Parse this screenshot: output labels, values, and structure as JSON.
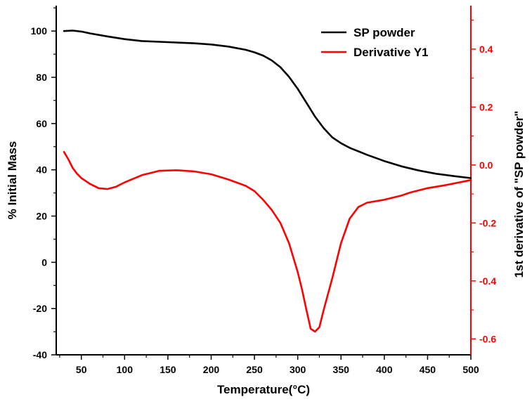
{
  "chart_data": {
    "type": "line",
    "xlabel": "Temperature(°C)",
    "ylabel_left": "% Initial Mass",
    "ylabel_right": "1st derivative of \"SP powder\"",
    "xlim": [
      21,
      500
    ],
    "ylim_left": [
      -40,
      111
    ],
    "ylim_right": [
      -0.655,
      0.55
    ],
    "x_ticks": [
      50,
      100,
      150,
      200,
      250,
      300,
      350,
      400,
      450,
      500
    ],
    "y_ticks_left": [
      -40,
      -20,
      0,
      20,
      40,
      60,
      80,
      100
    ],
    "y_ticks_right": [
      -0.6,
      -0.4,
      -0.2,
      0.0,
      0.2,
      0.4
    ],
    "grid": false,
    "legend_position": "top-right",
    "colors": {
      "left_axis": "#000000",
      "right_axis": "#ff0000"
    },
    "series": [
      {
        "name": "SP powder",
        "axis": "left",
        "color": "#000000",
        "x": [
          30,
          40,
          50,
          60,
          80,
          100,
          120,
          150,
          180,
          200,
          220,
          240,
          250,
          260,
          270,
          280,
          290,
          300,
          310,
          320,
          330,
          340,
          350,
          360,
          380,
          400,
          420,
          440,
          460,
          480,
          500
        ],
        "y": [
          100,
          100.2,
          99.8,
          99,
          97.7,
          96.5,
          95.7,
          95.2,
          94.7,
          94.2,
          93.3,
          91.9,
          90.8,
          89.4,
          87.3,
          84.4,
          80.2,
          75,
          69,
          63,
          58,
          54,
          51.5,
          49.5,
          46.5,
          43.8,
          41.5,
          39.7,
          38.3,
          37.3,
          36.4
        ]
      },
      {
        "name": "Derivative Y1",
        "axis": "right",
        "color": "#ff0000",
        "x": [
          30,
          35,
          40,
          45,
          50,
          60,
          70,
          80,
          90,
          100,
          120,
          140,
          160,
          180,
          200,
          220,
          240,
          250,
          260,
          270,
          280,
          290,
          300,
          305,
          310,
          315,
          320,
          325,
          330,
          340,
          350,
          360,
          370,
          380,
          400,
          420,
          430,
          450,
          470,
          500
        ],
        "y": [
          0.045,
          0.02,
          -0.01,
          -0.03,
          -0.045,
          -0.065,
          -0.08,
          -0.083,
          -0.075,
          -0.06,
          -0.035,
          -0.02,
          -0.018,
          -0.022,
          -0.032,
          -0.05,
          -0.072,
          -0.09,
          -0.12,
          -0.155,
          -0.2,
          -0.27,
          -0.37,
          -0.43,
          -0.5,
          -0.565,
          -0.575,
          -0.56,
          -0.5,
          -0.39,
          -0.27,
          -0.185,
          -0.145,
          -0.13,
          -0.12,
          -0.105,
          -0.095,
          -0.08,
          -0.07,
          -0.052
        ]
      }
    ]
  }
}
